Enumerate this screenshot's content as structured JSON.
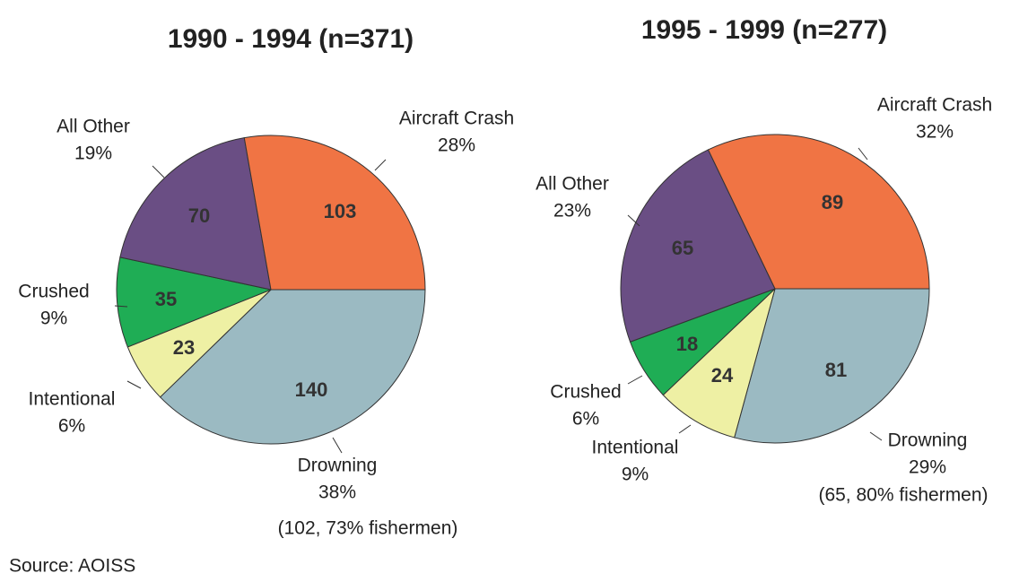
{
  "chart_data": [
    {
      "type": "pie",
      "title": "1990 - 1994 (n=371)",
      "categories": [
        "Drowning",
        "Intentional",
        "Crushed",
        "All Other",
        "Aircraft Crash"
      ],
      "values": [
        140,
        23,
        35,
        70,
        103
      ],
      "percent_labels": [
        "38%",
        "6%",
        "9%",
        "19%",
        "28%"
      ],
      "colors": [
        "#9bbac2",
        "#eef0a4",
        "#1fad55",
        "#6a4e84",
        "#f07444"
      ],
      "annotation": "(102, 73% fishermen)"
    },
    {
      "type": "pie",
      "title": "1995 - 1999 (n=277)",
      "categories": [
        "Drowning",
        "Intentional",
        "Crushed",
        "All Other",
        "Aircraft Crash"
      ],
      "values": [
        81,
        24,
        18,
        65,
        89
      ],
      "percent_labels": [
        "29%",
        "9%",
        "6%",
        "23%",
        "32%"
      ],
      "colors": [
        "#9bbac2",
        "#eef0a4",
        "#1fad55",
        "#6a4e84",
        "#f07444"
      ],
      "annotation": "(65, 80% fishermen)"
    }
  ],
  "source": "Source:  AOISS"
}
